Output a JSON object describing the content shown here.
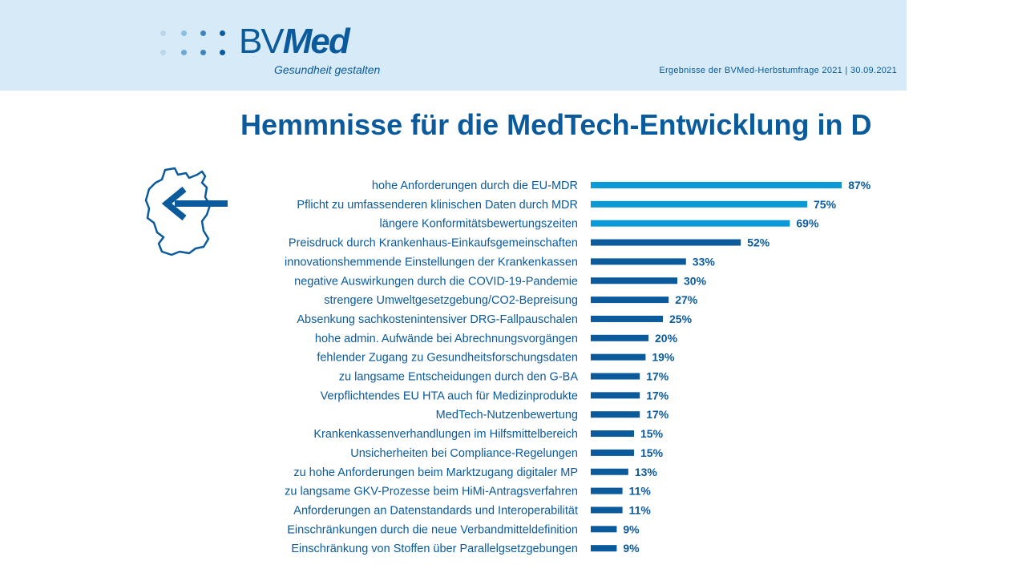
{
  "header": {
    "logo_text_light": "BV",
    "logo_text_bold": "Med",
    "tagline": "Gesundheit gestalten",
    "note": "Ergebnisse der BVMed-Herbstumfrage 2021 | 30.09.2021"
  },
  "colors": {
    "header_bg": "#d6ebf7",
    "brand_dark": "#0a5a9c",
    "bar_highlight": "#0a9ad8",
    "bar_default": "#0a5a9c"
  },
  "icons": {
    "map": "germany-map-arrow-icon",
    "logo_dots": "logo-dots-icon"
  },
  "chart_data": {
    "type": "bar",
    "orientation": "horizontal",
    "title": "Hemmnisse für die MedTech-Entwicklung in D",
    "value_suffix": "%",
    "xlim": [
      0,
      100
    ],
    "highlighted_count": 3,
    "categories": [
      "hohe Anforderungen durch die EU-MDR",
      "Pflicht zu umfassenderen klinischen Daten durch MDR",
      "längere Konformitätsbewertungszeiten",
      "Preisdruck durch Krankenhaus-Einkaufsgemeinschaften",
      "innovationshemmende Einstellungen der Krankenkassen",
      "negative Auswirkungen durch die COVID-19-Pandemie",
      "strengere Umweltgesetzgebung/CO2-Bepreisung",
      "Absenkung sachkostenintensiver DRG-Fallpauschalen",
      "hohe admin. Aufwände bei Abrechnungsvorgängen",
      "fehlender Zugang zu Gesundheitsforschungsdaten",
      "zu langsame Entscheidungen durch den G-BA",
      "Verpflichtendes EU HTA auch für Medizinprodukte",
      "MedTech-Nutzenbewertung",
      "Krankenkassenverhandlungen im Hilfsmittelbereich",
      "Unsicherheiten bei Compliance-Regelungen",
      "zu hohe Anforderungen beim Marktzugang digitaler MP",
      "zu langsame GKV-Prozesse beim HiMi-Antragsverfahren",
      "Anforderungen an Datenstandards und Interoperabilität",
      "Einschränkungen durch die neue Verbandmitteldefinition",
      "Einschränkung von Stoffen über Parallelgsetzgebungen"
    ],
    "values": [
      87,
      75,
      69,
      52,
      33,
      30,
      27,
      25,
      20,
      19,
      17,
      17,
      17,
      15,
      15,
      13,
      11,
      11,
      9,
      9
    ]
  }
}
